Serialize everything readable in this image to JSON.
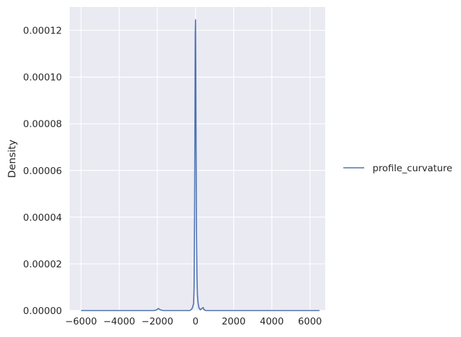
{
  "chart_data": {
    "type": "line",
    "title": "",
    "xlabel": "",
    "ylabel": "Density",
    "xlim": [
      -6600,
      6800
    ],
    "ylim": [
      0,
      0.00013
    ],
    "grid": true,
    "legend_position": "right",
    "x_ticks": [
      -6000,
      -4000,
      -2000,
      0,
      2000,
      4000,
      6000
    ],
    "x_tick_labels": [
      "−6000",
      "−4000",
      "−2000",
      "0",
      "2000",
      "4000",
      "6000"
    ],
    "y_ticks": [
      0,
      2e-05,
      4e-05,
      6e-05,
      8e-05,
      0.0001,
      0.00012
    ],
    "y_tick_labels": [
      "0.00000",
      "0.00002",
      "0.00004",
      "0.00006",
      "0.00008",
      "0.00010",
      "0.00012"
    ],
    "series": [
      {
        "name": "profile_curvature",
        "color": "#4c72b0",
        "x": [
          -6000,
          -2200,
          -2050,
          -1950,
          -1850,
          -1700,
          -300,
          -200,
          -150,
          -100,
          -75,
          -50,
          -30,
          -15,
          0,
          15,
          30,
          50,
          75,
          100,
          130,
          180,
          250,
          350,
          400,
          450,
          550,
          6500
        ],
        "y": [
          0,
          0,
          2e-07,
          9e-07,
          3e-07,
          0,
          0,
          6e-07,
          1.5e-06,
          3e-06,
          1e-05,
          4e-05,
          8e-05,
          0.000118,
          0.0001245,
          0.000105,
          7e-05,
          3.5e-05,
          1.5e-05,
          7e-06,
          3.5e-06,
          1.2e-06,
          3e-07,
          1e-06,
          1.3e-06,
          3e-07,
          0,
          0
        ]
      }
    ]
  }
}
